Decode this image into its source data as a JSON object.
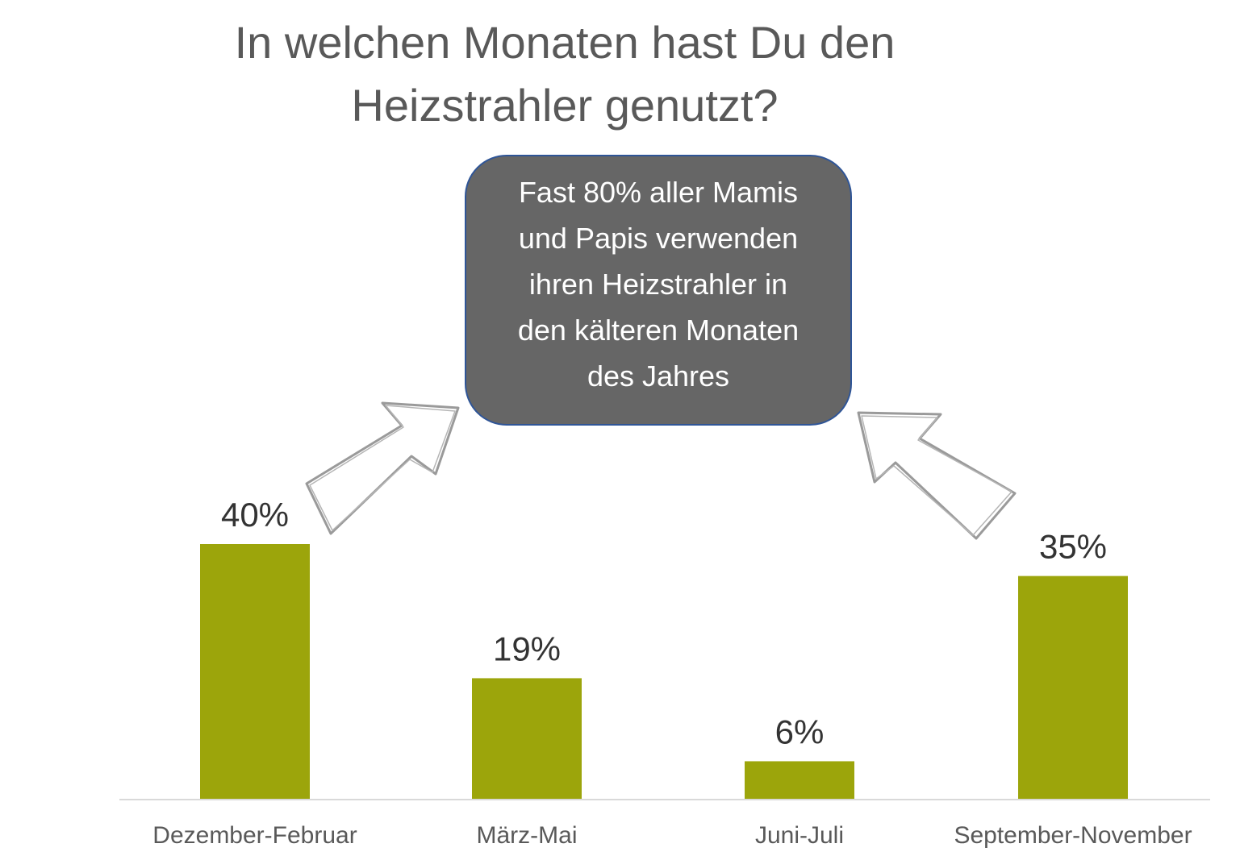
{
  "chart_data": {
    "type": "bar",
    "title": "In welchen Monaten hast Du den\nHeizstrahler genutzt?",
    "categories": [
      "Dezember-Februar",
      "März-Mai",
      "Juni-Juli",
      "September-November"
    ],
    "values": [
      40,
      19,
      6,
      35
    ],
    "data_labels": [
      "40%",
      "19%",
      "6%",
      "35%"
    ],
    "value_unit": "%",
    "ylim": [
      0,
      100
    ],
    "grid": false,
    "legend": "none",
    "bar_color": "#9ca50b",
    "annotation": "Fast 80% aller Mamis\nund Papis verwenden\nihren Heizstrahler in\nden kälteren Monaten\ndes Jahres"
  },
  "colors": {
    "title": "#595959",
    "callout_fill": "#666666",
    "callout_border": "#2f5597",
    "arrow_stroke": "#9a9a9a"
  }
}
